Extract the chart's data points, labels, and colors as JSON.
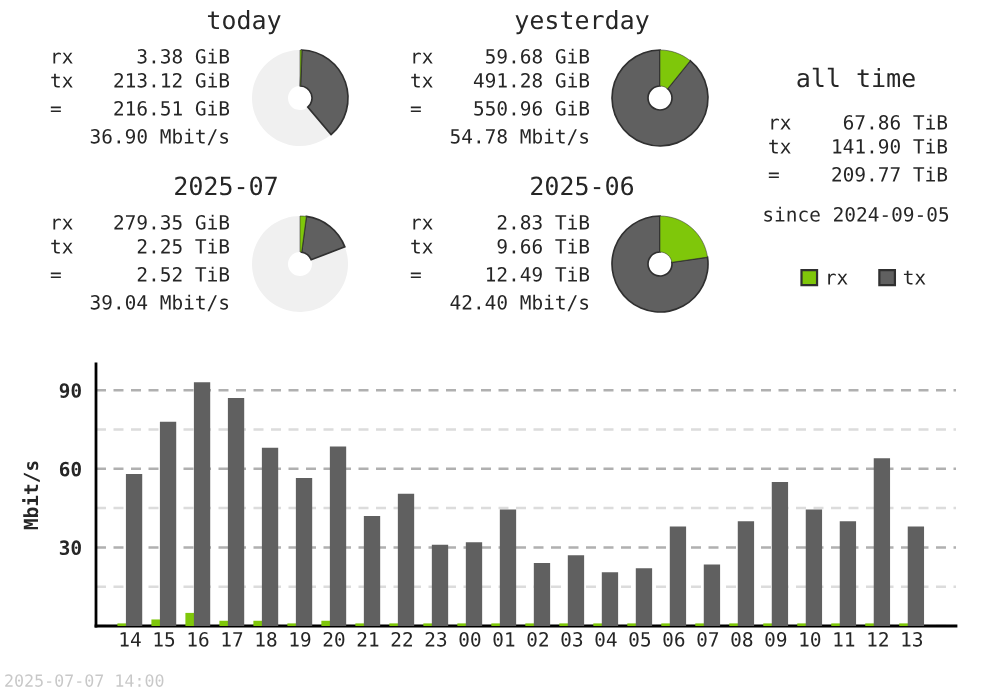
{
  "chart_data": [
    {
      "type": "donut",
      "title": "today",
      "categories": [
        null,
        null,
        null
      ],
      "values": [
        0.6,
        38.2,
        61.2
      ],
      "colors": [
        "#7fc70a",
        "#606060",
        "#f0f0f0"
      ],
      "annotations": [
        "rx",
        "3.38 GiB",
        "tx",
        "213.12 GiB",
        "=",
        "216.51 GiB",
        "36.90 Mbit/s"
      ]
    },
    {
      "type": "donut",
      "title": "yesterday",
      "categories": [
        null,
        null
      ],
      "values": [
        10.8,
        89.2
      ],
      "colors": [
        "#7fc70a",
        "#606060"
      ],
      "annotations": [
        "rx",
        "59.68 GiB",
        "tx",
        "491.28 GiB",
        "=",
        "550.96 GiB",
        "54.78 Mbit/s"
      ]
    },
    {
      "type": "donut",
      "title": "2025-07",
      "categories": [
        null,
        null,
        null
      ],
      "values": [
        2.1,
        17.1,
        80.8
      ],
      "colors": [
        "#7fc70a",
        "#606060",
        "#f0f0f0"
      ],
      "annotations": [
        "rx",
        "279.35 GiB",
        "tx",
        "2.25 TiB",
        "=",
        "2.52 TiB",
        "39.04 Mbit/s"
      ]
    },
    {
      "type": "donut",
      "title": "2025-06",
      "categories": [
        null,
        null
      ],
      "values": [
        22.7,
        77.3
      ],
      "colors": [
        "#7fc70a",
        "#606060"
      ],
      "annotations": [
        "rx",
        "2.83 TiB",
        "tx",
        "9.66 TiB",
        "=",
        "12.49 TiB",
        "42.40 Mbit/s"
      ]
    },
    {
      "type": "other",
      "title": "all time",
      "annotations": [
        "rx",
        "67.86 TiB",
        "tx",
        "141.90 TiB",
        "=",
        "209.77 TiB",
        "since 2024-09-05"
      ]
    },
    {
      "type": "bar",
      "ylabel": "Mbit/s",
      "categories": [
        "14",
        "15",
        "16",
        "17",
        "18",
        "19",
        "20",
        "21",
        "22",
        "23",
        "00",
        "01",
        "02",
        "03",
        "04",
        "05",
        "06",
        "07",
        "08",
        "09",
        "10",
        "11",
        "12",
        "13"
      ],
      "series": [
        {
          "name": "rx",
          "color": "#7fc70a",
          "values": [
            1,
            2.5,
            5,
            2,
            2,
            1,
            2,
            1,
            1,
            1,
            1,
            1,
            1,
            1,
            1,
            1,
            1,
            1,
            1,
            1,
            1,
            1,
            1,
            1
          ]
        },
        {
          "name": "tx",
          "color": "#606060",
          "values": [
            58,
            78,
            93,
            87,
            68,
            56.5,
            68.5,
            42,
            50.5,
            31,
            32,
            44.5,
            24,
            27,
            20.5,
            22,
            38,
            23.5,
            40,
            55,
            44.5,
            40,
            64,
            38
          ]
        }
      ],
      "ylim": [
        0,
        100
      ],
      "yticks": [
        {
          "value": 0,
          "label": null
        },
        {
          "value": 15,
          "label": null
        },
        30,
        {
          "value": 45,
          "label": null
        },
        60,
        {
          "value": 75,
          "label": null
        },
        90
      ],
      "grid": "y",
      "legend": "top right",
      "annotations": [
        "2025-07-07 14:00"
      ]
    }
  ]
}
